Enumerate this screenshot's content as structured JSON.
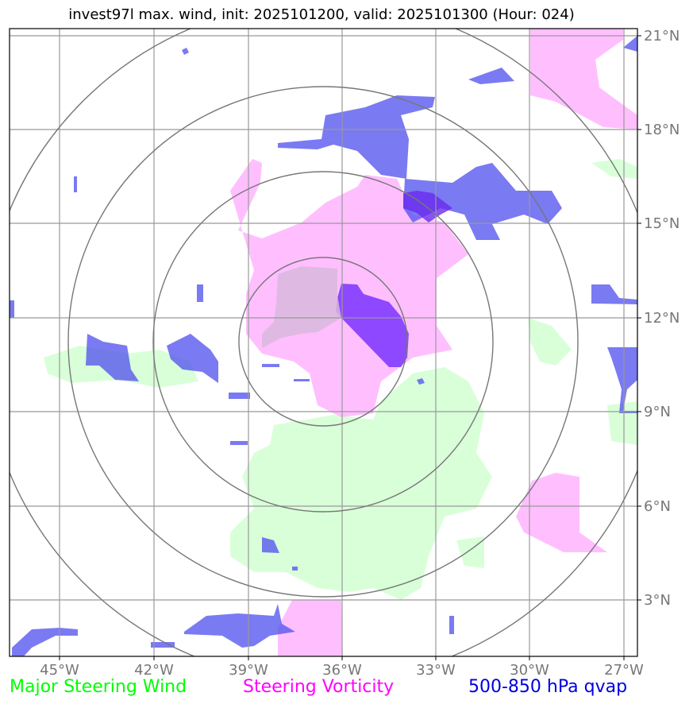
{
  "title": "invest97l max. wind, init: 2025101200, valid: 2025101300 (Hour: 024)",
  "legend": [
    {
      "label": "Major Steering Wind",
      "color": "#00ff00"
    },
    {
      "label": "Steering Vorticity",
      "color": "#ff00ff"
    },
    {
      "label": "500-850 hPa qvap",
      "color": "#0000dd"
    }
  ],
  "axes": {
    "lon_labels": [
      "45°W",
      "42°W",
      "39°W",
      "36°W",
      "33°W",
      "30°W",
      "27°W"
    ],
    "lat_labels": [
      "21°N",
      "18°N",
      "15°N",
      "12°N",
      "9°N",
      "6°N",
      "3°N"
    ]
  },
  "colors": {
    "wind": "#ccffcc",
    "vorticity": "#ffaaff",
    "qvap": "#5555ee",
    "qvap_strong": "#7a33ff",
    "grid": "#999999",
    "rings": "#777777"
  }
}
